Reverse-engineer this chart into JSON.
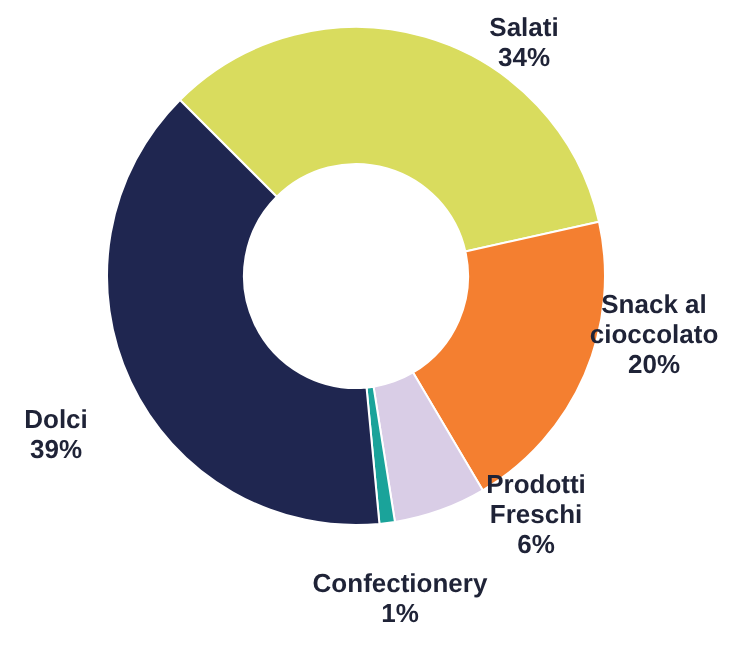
{
  "chart_data": {
    "type": "donut",
    "categories": [
      "Salati",
      "Snack al cioccolato",
      "Prodotti Freschi",
      "Confectionery",
      "Dolci"
    ],
    "values": [
      34,
      20,
      6,
      1,
      39
    ],
    "colors": [
      "#d9dc5e",
      "#f47f30",
      "#d9cde6",
      "#1aa39a",
      "#1f2650"
    ],
    "value_labels": [
      "34%",
      "20%",
      "6%",
      "1%",
      "39%"
    ],
    "legend": false
  }
}
